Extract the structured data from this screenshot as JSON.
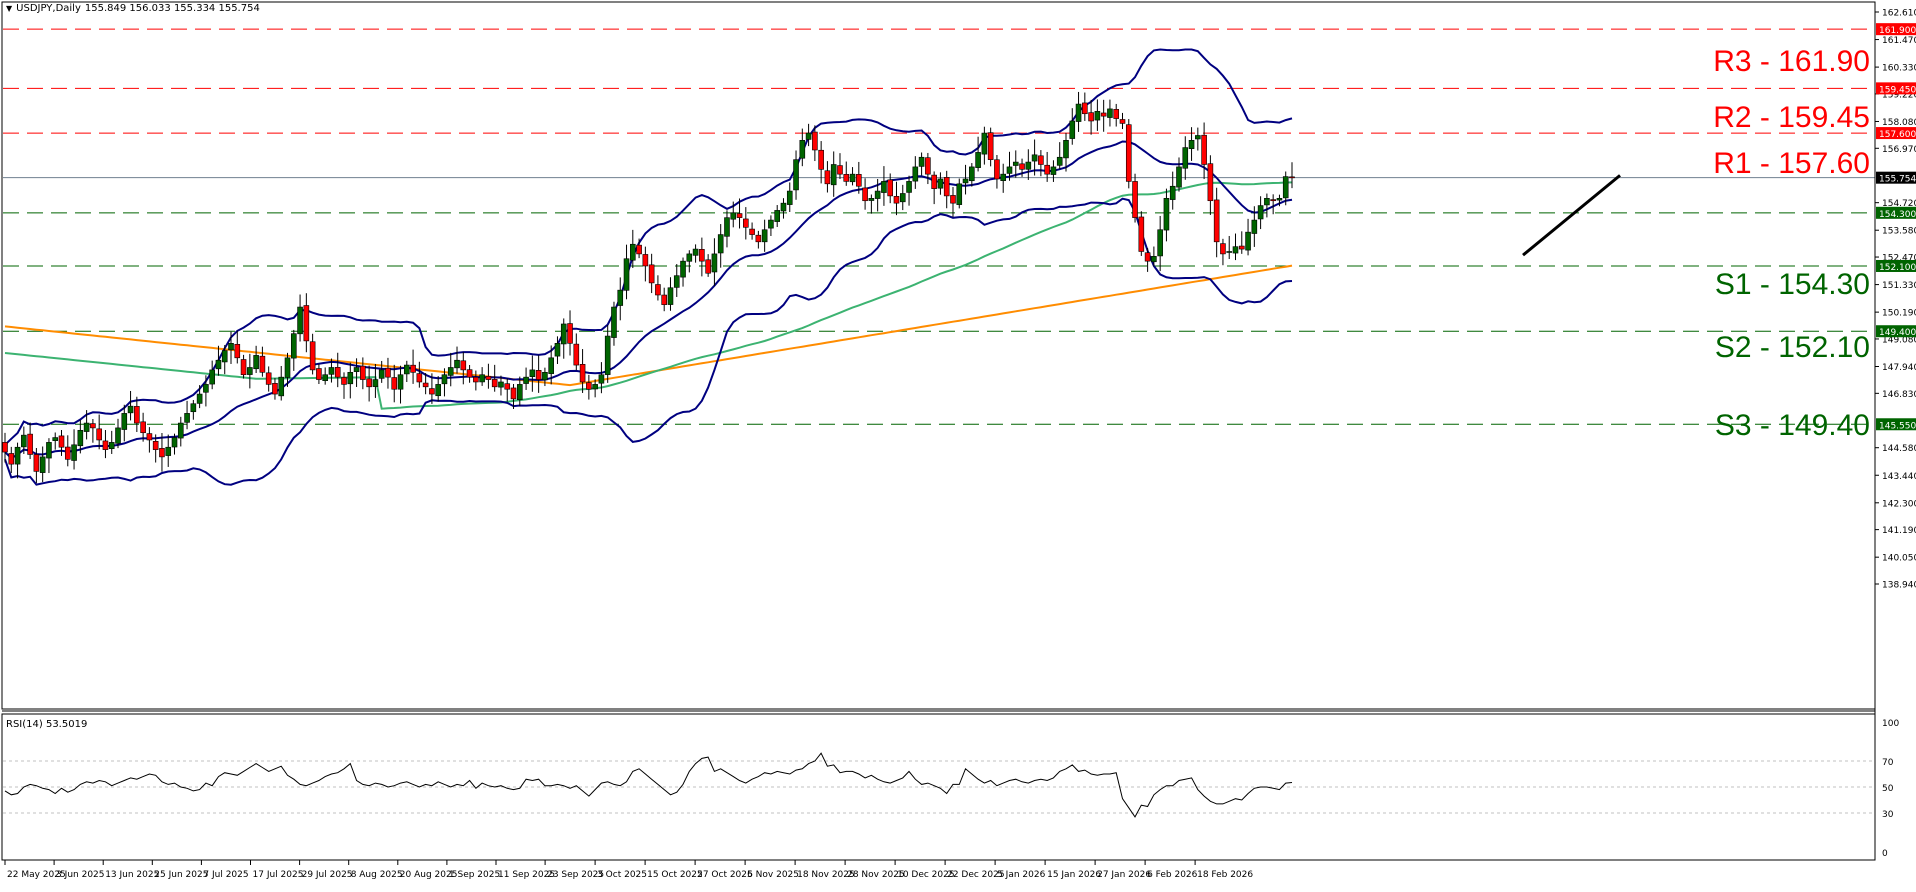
{
  "header": {
    "symbol": "USDJPY,Daily",
    "ohlc": "155.849 156.033 155.334 155.754",
    "collapse_icon": "triangle-down-icon"
  },
  "rsi_header": {
    "label": "RSI(14) 53.5019"
  },
  "levels": {
    "resistance": [
      {
        "name": "R3",
        "label": "R3 - 161.90",
        "price": 161.9,
        "tag": "161.900"
      },
      {
        "name": "R2",
        "label": "R2 - 159.45",
        "price": 159.45,
        "tag": "159.450"
      },
      {
        "name": "R1",
        "label": "R1 - 157.60",
        "price": 157.6,
        "tag": "157.600"
      }
    ],
    "support": [
      {
        "name": "S1",
        "label": "S1 - 154.30",
        "price": 154.3,
        "tag": "154.300"
      },
      {
        "name": "S2",
        "label": "S2 - 152.10",
        "price": 152.1,
        "tag": "152.100"
      },
      {
        "name": "S3",
        "label": "S3 - 149.40",
        "price": 149.4,
        "tag": "149.400"
      },
      {
        "name": "S4",
        "label": "",
        "price": 145.55,
        "tag": "145.550"
      }
    ]
  },
  "colors": {
    "resistance": "#ff0000",
    "support": "#006400",
    "bull_candle": "#006400",
    "bear_candle": "#ff0000",
    "bollinger": "#000080",
    "ma_green": "#3cb371",
    "ma_orange": "#ff8c00",
    "current_price_line": "#708090",
    "trendline": "#000000",
    "rsi_line": "#000000"
  },
  "chart_data": [
    {
      "type": "candlestick",
      "title": "USDJPY, Daily",
      "ohlc_last": {
        "open": 155.849,
        "high": 156.033,
        "low": 155.334,
        "close": 155.754
      },
      "current_price": 155.754,
      "ylim": [
        138.94,
        162.61
      ],
      "y_ticks": [
        "162.610",
        "161.470",
        "160.330",
        "159.220",
        "158.080",
        "156.970",
        "154.720",
        "153.580",
        "152.470",
        "151.330",
        "150.190",
        "149.080",
        "147.940",
        "146.830",
        "144.580",
        "143.440",
        "142.300",
        "141.190",
        "140.050",
        "138.940"
      ],
      "x_ticks": [
        "22 May 2025",
        "3 Jun 2025",
        "13 Jun 2025",
        "25 Jun 2025",
        "7 Jul 2025",
        "17 Jul 2025",
        "29 Jul 2025",
        "8 Aug 2025",
        "20 Aug 2025",
        "1 Sep 2025",
        "11 Sep 2025",
        "23 Sep 2025",
        "3 Oct 2025",
        "15 Oct 2025",
        "27 Oct 2025",
        "6 Nov 2025",
        "18 Nov 2025",
        "28 Nov 2025",
        "10 Dec 2025",
        "22 Dec 2025",
        "5 Jan 2026",
        "15 Jan 2026",
        "27 Jan 2026",
        "6 Feb 2026",
        "18 Feb 2026"
      ],
      "indicators": [
        "Bollinger Bands (20)",
        "MA green (~100)",
        "MA orange (~200)"
      ],
      "horizontal_levels": {
        "R3": 161.9,
        "R2": 159.45,
        "R1": 157.6,
        "S1": 154.3,
        "S2": 152.1,
        "S3": 149.4,
        "extra": 145.55
      },
      "trendline": {
        "from": {
          "date": "10 Feb 2026",
          "price": 152.5
        },
        "to": {
          "date": "25 Feb 2026",
          "price": 155.9
        },
        "label": "ascending trendline"
      },
      "closes_approx": [
        144.4,
        143.9,
        144.6,
        145.1,
        144.3,
        143.6,
        144.2,
        144.8,
        145.0,
        144.6,
        144.1,
        144.7,
        145.3,
        145.6,
        145.4,
        144.9,
        144.5,
        144.8,
        145.4,
        146.0,
        146.3,
        145.6,
        145.2,
        144.9,
        144.5,
        144.2,
        144.6,
        145.0,
        145.6,
        146.0,
        146.4,
        146.8,
        147.2,
        147.8,
        148.2,
        148.6,
        148.9,
        148.3,
        147.6,
        147.9,
        148.4,
        147.7,
        147.2,
        146.8,
        147.5,
        148.3,
        149.3,
        150.4,
        149.0,
        147.8,
        147.4,
        147.6,
        147.9,
        147.5,
        147.2,
        147.7,
        147.9,
        147.4,
        147.1,
        147.4,
        147.8,
        147.5,
        147.0,
        147.6,
        148.0,
        147.7,
        147.3,
        147.1,
        146.8,
        147.2,
        147.6,
        147.9,
        148.2,
        147.8,
        147.5,
        147.3,
        147.6,
        147.4,
        147.1,
        147.3,
        147.0,
        146.6,
        147.2,
        147.5,
        147.8,
        147.4,
        147.7,
        148.3,
        148.9,
        149.7,
        148.9,
        148.0,
        147.3,
        147.0,
        147.2,
        147.6,
        149.2,
        150.4,
        151.1,
        152.4,
        153.0,
        152.6,
        152.1,
        151.4,
        150.9,
        150.5,
        151.2,
        151.7,
        152.3,
        152.6,
        152.8,
        152.3,
        151.8,
        152.6,
        153.4,
        154.1,
        154.3,
        154.1,
        153.7,
        153.4,
        153.1,
        153.6,
        154.0,
        154.4,
        154.7,
        155.2,
        156.5,
        157.3,
        157.6,
        156.9,
        156.1,
        155.5,
        156.3,
        155.9,
        155.6,
        155.9,
        155.4,
        154.8,
        154.9,
        155.2,
        155.6,
        155.0,
        154.7,
        155.1,
        155.6,
        156.2,
        156.6,
        155.9,
        155.3,
        155.7,
        155.0,
        154.7,
        155.5,
        155.7,
        156.2,
        156.8,
        157.6,
        156.5,
        155.7,
        155.9,
        156.2,
        156.4,
        156.1,
        156.4,
        156.7,
        156.3,
        155.9,
        156.2,
        156.6,
        157.3,
        158.1,
        158.8,
        158.4,
        158.1,
        158.5,
        158.3,
        158.6,
        158.2,
        158.0,
        155.6,
        154.1,
        152.7,
        152.3,
        152.5,
        153.6,
        154.9,
        155.4,
        156.2,
        157.0,
        157.3,
        157.5,
        156.3,
        154.8,
        153.1,
        152.6,
        152.7,
        152.9,
        152.8,
        153.5,
        154.0,
        154.6,
        154.9,
        154.8,
        154.9,
        155.8,
        155.75
      ]
    },
    {
      "type": "line",
      "title": "RSI(14)",
      "value_last": 53.5019,
      "ylim": [
        0,
        100
      ],
      "y_ticks": [
        "100",
        "70",
        "50",
        "30",
        "0"
      ],
      "reference_lines": [
        70,
        50,
        30
      ],
      "values_approx": [
        47,
        44,
        45,
        50,
        52,
        51,
        49,
        48,
        45,
        49,
        46,
        48,
        52,
        54,
        53,
        55,
        54,
        51,
        53,
        55,
        57,
        56,
        58,
        60,
        59,
        54,
        52,
        53,
        50,
        49,
        47,
        48,
        53,
        51,
        58,
        61,
        60,
        59,
        62,
        65,
        68,
        65,
        62,
        64,
        66,
        59,
        56,
        52,
        51,
        53,
        55,
        58,
        60,
        61,
        64,
        68,
        55,
        52,
        51,
        53,
        52,
        50,
        51,
        53,
        54,
        52,
        50,
        52,
        51,
        54,
        52,
        50,
        52,
        51,
        55,
        49,
        53,
        51,
        50,
        51,
        49,
        48,
        49,
        56,
        55,
        56,
        51,
        51,
        52,
        51,
        49,
        51,
        47,
        43,
        48,
        53,
        54,
        52,
        51,
        54,
        62,
        64,
        60,
        56,
        52,
        48,
        44,
        46,
        52,
        62,
        68,
        72,
        73,
        62,
        64,
        61,
        58,
        55,
        53,
        56,
        58,
        61,
        60,
        62,
        61,
        60,
        63,
        64,
        68,
        70,
        76,
        66,
        67,
        61,
        62,
        62,
        60,
        57,
        59,
        56,
        54,
        53,
        55,
        57,
        62,
        56,
        52,
        53,
        51,
        49,
        45,
        52,
        52,
        64,
        60,
        56,
        53,
        55,
        51,
        53,
        55,
        56,
        54,
        53,
        55,
        56,
        55,
        57,
        62,
        64,
        67,
        62,
        63,
        60,
        59,
        60,
        60,
        61,
        41,
        34,
        27,
        36,
        35,
        44,
        48,
        51,
        51,
        55,
        56,
        57,
        48,
        43,
        39,
        37,
        37,
        39,
        41,
        40,
        45,
        49,
        50,
        50,
        49,
        48,
        53,
        53.5
      ]
    }
  ]
}
